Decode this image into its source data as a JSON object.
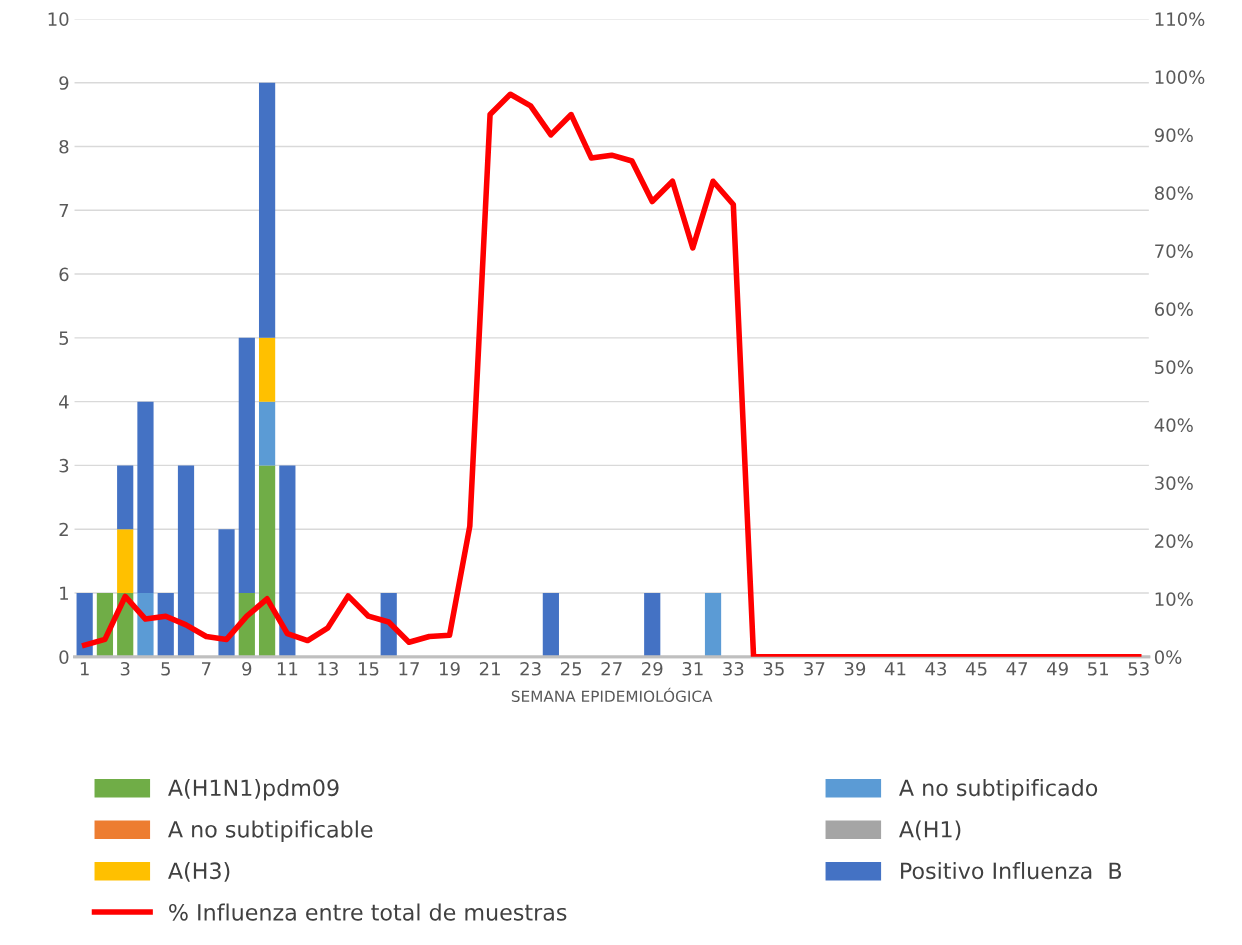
{
  "chart_data": {
    "type": "bar",
    "stacked": true,
    "xlabel": "SEMANA EPIDEMIOLÓGICA",
    "categories": [
      "1",
      null,
      "3",
      null,
      "5",
      null,
      "7",
      null,
      "9",
      null,
      "11",
      null,
      "13",
      null,
      "15",
      null,
      "17",
      null,
      "19",
      null,
      "21",
      null,
      "23",
      null,
      "25",
      null,
      "27",
      null,
      "29",
      null,
      "31",
      null,
      "33",
      null,
      "35",
      null,
      "37",
      null,
      "39",
      null,
      "41",
      null,
      "43",
      null,
      "45",
      null,
      "47",
      null,
      "49",
      null,
      "51",
      null,
      "53"
    ],
    "series": [
      {
        "name": "A(H1N1)pdm09",
        "color": "#70ad47",
        "values": [
          0,
          1,
          1,
          0,
          0,
          0,
          0,
          0,
          1,
          3,
          0,
          0,
          0,
          0,
          0,
          0,
          0,
          0,
          0,
          0,
          0,
          0,
          0,
          0,
          0,
          0,
          0,
          0,
          0,
          0,
          0,
          0,
          0,
          0,
          0,
          0,
          0,
          0,
          0,
          0,
          0,
          0,
          0,
          0,
          0,
          0,
          0,
          0,
          0,
          0,
          0,
          0,
          0
        ]
      },
      {
        "name": "A no subtipificado",
        "color": "#5b9bd5",
        "values": [
          0,
          0,
          0,
          1,
          0,
          0,
          0,
          0,
          0,
          1,
          0,
          0,
          0,
          0,
          0,
          0,
          0,
          0,
          0,
          0,
          0,
          0,
          0,
          0,
          0,
          0,
          0,
          0,
          0,
          0,
          0,
          1,
          0,
          0,
          0,
          0,
          0,
          0,
          0,
          0,
          0,
          0,
          0,
          0,
          0,
          0,
          0,
          0,
          0,
          0,
          0,
          0,
          0
        ]
      },
      {
        "name": "A no subtipificable",
        "color": "#ed7d31",
        "values": [
          0,
          0,
          0,
          0,
          0,
          0,
          0,
          0,
          0,
          0,
          0,
          0,
          0,
          0,
          0,
          0,
          0,
          0,
          0,
          0,
          0,
          0,
          0,
          0,
          0,
          0,
          0,
          0,
          0,
          0,
          0,
          0,
          0,
          0,
          0,
          0,
          0,
          0,
          0,
          0,
          0,
          0,
          0,
          0,
          0,
          0,
          0,
          0,
          0,
          0,
          0,
          0,
          0
        ]
      },
      {
        "name": "A(H1)",
        "color": "#a5a5a5",
        "values": [
          0,
          0,
          0,
          0,
          0,
          0,
          0,
          0,
          0,
          0,
          0,
          0,
          0,
          0,
          0,
          0,
          0,
          0,
          0,
          0,
          0,
          0,
          0,
          0,
          0,
          0,
          0,
          0,
          0,
          0,
          0,
          0,
          0,
          0,
          0,
          0,
          0,
          0,
          0,
          0,
          0,
          0,
          0,
          0,
          0,
          0,
          0,
          0,
          0,
          0,
          0,
          0,
          0
        ]
      },
      {
        "name": "A(H3)",
        "color": "#ffc000",
        "values": [
          0,
          0,
          1,
          0,
          0,
          0,
          0,
          0,
          0,
          1,
          0,
          0,
          0,
          0,
          0,
          0,
          0,
          0,
          0,
          0,
          0,
          0,
          0,
          0,
          0,
          0,
          0,
          0,
          0,
          0,
          0,
          0,
          0,
          0,
          0,
          0,
          0,
          0,
          0,
          0,
          0,
          0,
          0,
          0,
          0,
          0,
          0,
          0,
          0,
          0,
          0,
          0,
          0
        ]
      },
      {
        "name": "Positivo Influenza  B",
        "color": "#4472c4",
        "values": [
          1,
          0,
          1,
          3,
          1,
          3,
          0,
          2,
          4,
          4,
          3,
          0,
          0,
          0,
          0,
          1,
          0,
          0,
          0,
          0,
          0,
          0,
          0,
          1,
          0,
          0,
          0,
          0,
          1,
          0,
          0,
          0,
          0,
          0,
          0,
          0,
          0,
          0,
          0,
          0,
          0,
          0,
          0,
          0,
          0,
          0,
          0,
          0,
          0,
          0,
          0,
          0,
          0
        ]
      },
      {
        "name": "% Influenza entre total de muestras",
        "type": "line",
        "axis": "y2",
        "color": "#ff0000",
        "values": [
          2,
          3,
          10.4,
          6.5,
          7,
          5.5,
          3.5,
          3,
          7,
          10,
          4,
          2.8,
          5,
          10.5,
          7,
          6,
          2.5,
          3.5,
          3.7,
          22.5,
          93.5,
          97,
          95,
          90,
          93.5,
          86,
          86.5,
          85.5,
          78.5,
          82,
          70.5,
          82,
          78,
          0,
          0,
          0,
          0,
          0,
          0,
          0,
          0,
          0,
          0,
          0,
          0,
          0,
          0,
          0,
          0,
          0,
          0,
          0,
          0
        ]
      }
    ],
    "ylim": [
      0,
      10
    ],
    "yticks": [
      0,
      1,
      2,
      3,
      4,
      5,
      6,
      7,
      8,
      9,
      10
    ],
    "y2lim": [
      0,
      110
    ],
    "y2ticks": [
      {
        "value": 0,
        "label": "0%"
      },
      {
        "value": 10,
        "label": "10%"
      },
      {
        "value": 20,
        "label": "20%"
      },
      {
        "value": 30,
        "label": "30%"
      },
      {
        "value": 40,
        "label": "40%"
      },
      {
        "value": 50,
        "label": "50%"
      },
      {
        "value": 60,
        "label": "60%"
      },
      {
        "value": 70,
        "label": "70%"
      },
      {
        "value": 80,
        "label": "80%"
      },
      {
        "value": 90,
        "label": "90%"
      },
      {
        "value": 100,
        "label": "100%"
      },
      {
        "value": 110,
        "label": "110%"
      }
    ],
    "grid": "y",
    "legend": "bottom"
  }
}
